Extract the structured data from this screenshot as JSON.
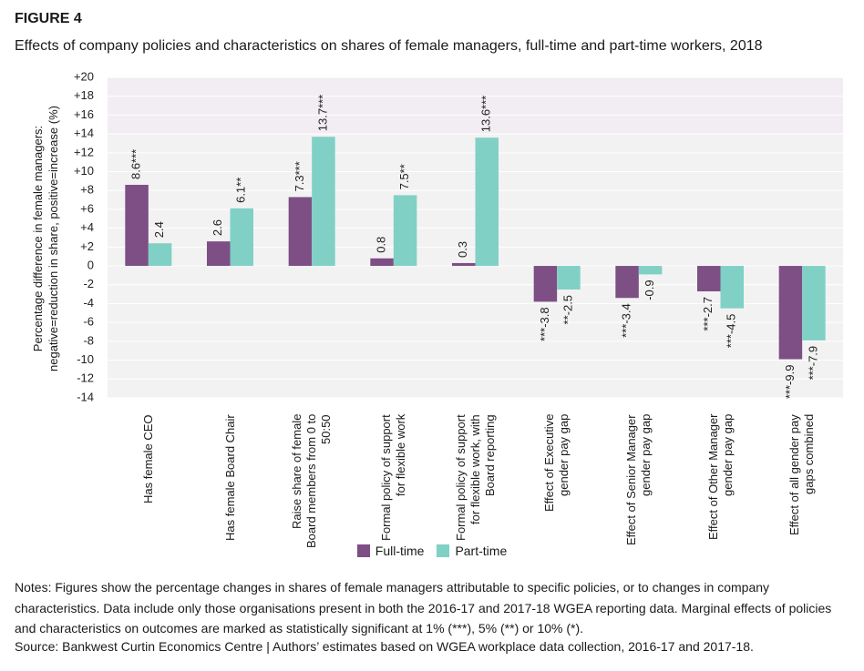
{
  "chart_data": {
    "type": "bar",
    "title": "FIGURE 4",
    "subtitle": "Effects of company policies and characteristics on shares of female managers, full-time and part-time workers, 2018",
    "ylabel": [
      "Percentage difference in female managers:",
      "negative=reduction in share, positive=increase (%)"
    ],
    "categories": [
      "Has female CEO",
      "Has female Board Chair",
      "Raise share of female Board members from 0 to 50:50",
      "Formal policy of support for flexible work",
      "Formal policy of support for flexible work, with Board reporting",
      "Effect of Executive gender pay gap",
      "Effect of Senior Manager gender pay gap",
      "Effect of Other Manager gender pay gap",
      "Effect of all gender pay gaps combined"
    ],
    "series": [
      {
        "name": "Full-time",
        "color": "#7d4f85",
        "values": [
          8.6,
          2.6,
          7.3,
          0.8,
          0.3,
          -3.8,
          -3.4,
          -2.7,
          -9.9
        ],
        "value_labels": [
          "8.6***",
          "2.6",
          "7.3***",
          "0.8",
          "0.3",
          "***-3.8",
          "***-3.4",
          "***-2.7",
          "***-9.9"
        ]
      },
      {
        "name": "Part-time",
        "color": "#80d0c5",
        "values": [
          2.4,
          6.1,
          13.7,
          7.5,
          13.6,
          -2.5,
          -0.9,
          -4.5,
          -7.9
        ],
        "value_labels": [
          "2.4",
          "6.1**",
          "13.7***",
          "7.5**",
          "13.6***",
          "**-2.5",
          "-0.9",
          "***-4.5",
          "***-7.9"
        ]
      }
    ],
    "ylim": [
      -14,
      20
    ],
    "yticks": [
      {
        "value": 20,
        "label": "+20"
      },
      {
        "value": 18,
        "label": "+18"
      },
      {
        "value": 16,
        "label": "+16"
      },
      {
        "value": 14,
        "label": "+14"
      },
      {
        "value": 12,
        "label": "+12"
      },
      {
        "value": 10,
        "label": "+10"
      },
      {
        "value": 8,
        "label": "+8"
      },
      {
        "value": 6,
        "label": "+6"
      },
      {
        "value": 4,
        "label": "+4"
      },
      {
        "value": 2,
        "label": "+2"
      },
      0,
      -2,
      -4,
      -6,
      -8,
      -10,
      -12,
      -14
    ],
    "grid": true,
    "notes": "Notes: Figures show the percentage changes in shares of female managers attributable to specific policies, or to changes in company characteristics. Data include only those organisations present in both the 2016-17 and 2017-18 WGEA reporting data. Marginal effects of policies and characteristics on outcomes are marked as statistically significant at 1% (***), 5% (**) or 10% (*).",
    "source": "Source: Bankwest Curtin Economics Centre | Authors’ estimates based on WGEA workplace data collection, 2016-17 and 2017-18."
  }
}
